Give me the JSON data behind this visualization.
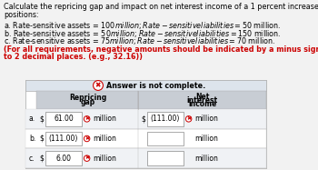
{
  "title_line1": "Calculate the repricing gap and impact on net interest income of a 1 percent increase in interest rates for the following",
  "title_line2": "positions:",
  "bullet_a": "a. Rate-sensitive assets = $100 million; Rate-sensitive liabilities = $50 million.",
  "bullet_b": "b. Rate-sensitive assets = $50 million; Rate-sensitive liabilities = $150 million.",
  "bullet_c": "c. Rate-sensitive assets = $75 million; Rate-sensitive liabilities = $70 million.",
  "note_line1": "(For all requirements, negative amounts should be indicated by a minus sign. Enter your answers in millions rounded",
  "note_line2": "to 2 decimal places. (e.g., 32.16))",
  "answer_incomplete": "Answer is not complete.",
  "col1_header_line1": "Repricing",
  "col1_header_line2": "gap",
  "col2_header_line1": "Net",
  "col2_header_line2": "interest",
  "col2_header_line3": "income",
  "row_labels": [
    "a.",
    "b.",
    "c."
  ],
  "repricing_gap": [
    "61.00",
    "(111.00)",
    "6.00"
  ],
  "net_interest_income": [
    "(111.00)",
    "",
    ""
  ],
  "gap_has_error": [
    true,
    true,
    true
  ],
  "ni_has_error": [
    true,
    false,
    false
  ],
  "bg_color": "#f2f2f2",
  "note_color": "#cc0000",
  "table_outer_bg": "#e8ecf0",
  "banner_bg": "#dde4ec",
  "header_bg": "#c8cdd4",
  "row_bg_even": "#f0f2f5",
  "row_bg_odd": "#ffffff",
  "error_color": "#cc0000",
  "title_fontsize": 5.8,
  "note_fontsize": 5.8,
  "table_fontsize": 5.5
}
